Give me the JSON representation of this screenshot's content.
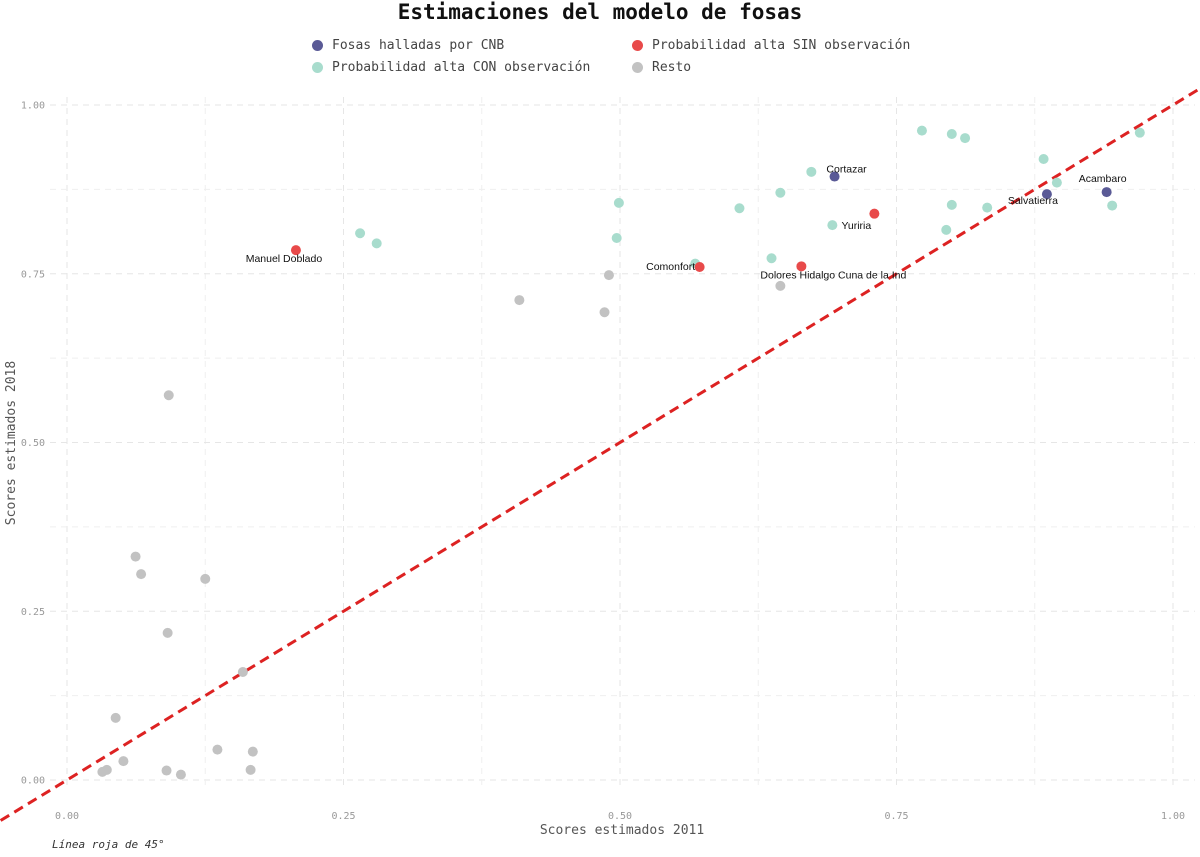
{
  "chart_data": {
    "type": "scatter",
    "title": "Estimaciones del modelo de fosas",
    "xlabel": "Scores estimados 2011",
    "ylabel": "Scores estimados 2018",
    "xlim": [
      0,
      1
    ],
    "ylim": [
      0,
      1
    ],
    "x_ticks": [
      "0.00",
      "0.25",
      "0.50",
      "0.75",
      "1.00"
    ],
    "y_ticks": [
      "0.00",
      "0.25",
      "0.50",
      "0.75",
      "1.00"
    ],
    "grid": true,
    "legend_position": "top",
    "caption": "Línea roja de 45°",
    "reference_line": {
      "slope": 1,
      "intercept": 0,
      "color": "#dd2222",
      "style": "dashed"
    },
    "series": [
      {
        "name": "Fosas halladas por CNB",
        "color": "#5a5a96",
        "points": [
          {
            "x": 0.694,
            "y": 0.894,
            "label": "Cortazar"
          },
          {
            "x": 0.886,
            "y": 0.868,
            "label": "Salvatierra"
          },
          {
            "x": 0.94,
            "y": 0.871,
            "label": "Acambaro"
          }
        ]
      },
      {
        "name": "Probabilidad alta CON observación",
        "color": "#a8dccd",
        "points": [
          {
            "x": 0.265,
            "y": 0.81
          },
          {
            "x": 0.28,
            "y": 0.795
          },
          {
            "x": 0.497,
            "y": 0.803
          },
          {
            "x": 0.499,
            "y": 0.855
          },
          {
            "x": 0.568,
            "y": 0.765
          },
          {
            "x": 0.608,
            "y": 0.847
          },
          {
            "x": 0.637,
            "y": 0.773
          },
          {
            "x": 0.645,
            "y": 0.87
          },
          {
            "x": 0.673,
            "y": 0.901
          },
          {
            "x": 0.692,
            "y": 0.822,
            "label": "Yuriria"
          },
          {
            "x": 0.773,
            "y": 0.962
          },
          {
            "x": 0.8,
            "y": 0.957
          },
          {
            "x": 0.812,
            "y": 0.951
          },
          {
            "x": 0.795,
            "y": 0.815
          },
          {
            "x": 0.8,
            "y": 0.852
          },
          {
            "x": 0.832,
            "y": 0.848
          },
          {
            "x": 0.883,
            "y": 0.92
          },
          {
            "x": 0.895,
            "y": 0.885
          },
          {
            "x": 0.945,
            "y": 0.851
          },
          {
            "x": 0.97,
            "y": 0.959
          }
        ]
      },
      {
        "name": "Probabilidad alta SIN observación",
        "color": "#e84a4a",
        "points": [
          {
            "x": 0.207,
            "y": 0.785,
            "label": "Manuel Doblado"
          },
          {
            "x": 0.572,
            "y": 0.76,
            "label": "Comonfort"
          },
          {
            "x": 0.664,
            "y": 0.761,
            "label": "Dolores Hidalgo Cuna de la Ind"
          },
          {
            "x": 0.73,
            "y": 0.839
          }
        ]
      },
      {
        "name": "Resto",
        "color": "#c2c2c2",
        "points": [
          {
            "x": 0.032,
            "y": 0.012
          },
          {
            "x": 0.036,
            "y": 0.015
          },
          {
            "x": 0.044,
            "y": 0.092
          },
          {
            "x": 0.051,
            "y": 0.028
          },
          {
            "x": 0.062,
            "y": 0.331
          },
          {
            "x": 0.067,
            "y": 0.305
          },
          {
            "x": 0.09,
            "y": 0.014
          },
          {
            "x": 0.091,
            "y": 0.218
          },
          {
            "x": 0.092,
            "y": 0.57
          },
          {
            "x": 0.103,
            "y": 0.008
          },
          {
            "x": 0.125,
            "y": 0.298
          },
          {
            "x": 0.136,
            "y": 0.045
          },
          {
            "x": 0.159,
            "y": 0.16
          },
          {
            "x": 0.166,
            "y": 0.015
          },
          {
            "x": 0.168,
            "y": 0.042
          },
          {
            "x": 0.409,
            "y": 0.711
          },
          {
            "x": 0.486,
            "y": 0.693
          },
          {
            "x": 0.49,
            "y": 0.748
          },
          {
            "x": 0.645,
            "y": 0.732
          }
        ]
      }
    ]
  }
}
